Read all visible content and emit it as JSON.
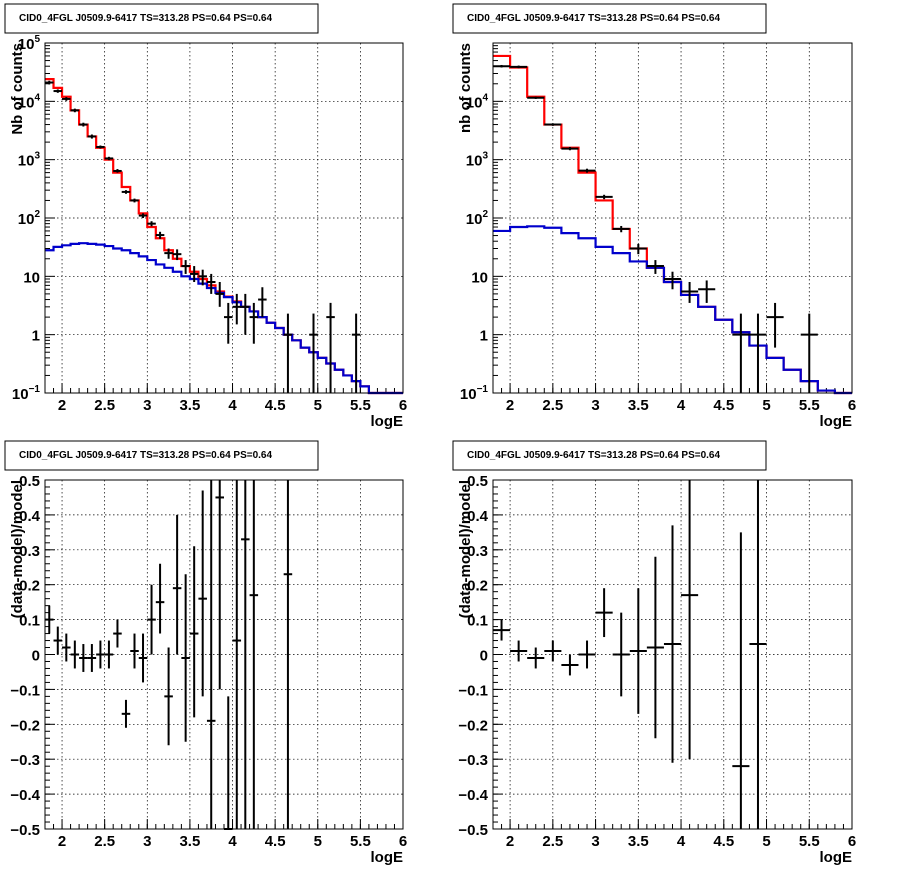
{
  "chart_data": [
    {
      "type": "histogram",
      "title": "CID0_4FGL J0509.9-6417 TS=313.28 PS=0.64 PS=0.64",
      "xlabel": "logE",
      "ylabel": "Nb of counts",
      "xlim": [
        1.8,
        6
      ],
      "ylim": [
        0.1,
        100000
      ],
      "yscale": "log",
      "grid": true,
      "x_ticks": [
        "2",
        "2.5",
        "3",
        "3.5",
        "4",
        "4.5",
        "5",
        "5.5",
        "6"
      ],
      "y_ticks": [
        {
          "v": 0.1,
          "base": "10",
          "exp": "−1"
        },
        {
          "v": 1,
          "base": "1",
          "exp": ""
        },
        {
          "v": 10,
          "base": "10",
          "exp": ""
        },
        {
          "v": 100,
          "base": "10",
          "exp": "2"
        },
        {
          "v": 1000,
          "base": "10",
          "exp": "3"
        },
        {
          "v": 10000,
          "base": "10",
          "exp": "4"
        },
        {
          "v": 100000,
          "base": "10",
          "exp": "5"
        }
      ],
      "bin_width": 0.1,
      "series": [
        {
          "color": "#ff0000",
          "x": [
            1.8,
            1.9,
            2.0,
            2.1,
            2.2,
            2.3,
            2.4,
            2.5,
            2.6,
            2.7,
            2.8,
            2.9,
            3.0,
            3.1,
            3.2,
            3.3,
            3.4,
            3.5,
            3.6,
            3.7,
            3.8,
            3.9,
            4.0,
            4.1,
            4.2,
            4.3,
            4.4,
            4.5,
            4.6,
            4.7,
            4.8,
            4.9,
            5.0,
            5.1,
            5.2,
            5.3,
            5.4,
            5.5,
            5.6,
            5.7,
            5.8,
            5.9
          ],
          "values": [
            24000,
            17000,
            12000,
            7000,
            4000,
            2500,
            1600,
            1000,
            600,
            340,
            200,
            120,
            70,
            45,
            28,
            20,
            15,
            12,
            9,
            7,
            5.5,
            4.5,
            3.7,
            3.0,
            2.5,
            2.0,
            1.6,
            1.3,
            1.0,
            0.8,
            0.6,
            0.5,
            0.4,
            0.32,
            0.25,
            0.2,
            0.16,
            0.13,
            0.1,
            0.1,
            0.1,
            0.1
          ]
        },
        {
          "color": "#0000cc",
          "x": [
            1.8,
            1.9,
            2.0,
            2.1,
            2.2,
            2.3,
            2.4,
            2.5,
            2.6,
            2.7,
            2.8,
            2.9,
            3.0,
            3.1,
            3.2,
            3.3,
            3.4,
            3.5,
            3.6,
            3.7,
            3.8,
            3.9,
            4.0,
            4.1,
            4.2,
            4.3,
            4.4,
            4.5,
            4.6,
            4.7,
            4.8,
            4.9,
            5.0,
            5.1,
            5.2,
            5.3,
            5.4,
            5.5,
            5.6,
            5.7,
            5.8,
            5.9
          ],
          "values": [
            28,
            32,
            34,
            36,
            37,
            36,
            35,
            33,
            30,
            28,
            25,
            22,
            19,
            16,
            14,
            12,
            10,
            9,
            7.5,
            6.3,
            5.2,
            4.4,
            3.6,
            3.0,
            2.5,
            2.0,
            1.6,
            1.3,
            1.0,
            0.8,
            0.6,
            0.5,
            0.4,
            0.32,
            0.25,
            0.2,
            0.16,
            0.13,
            0.1,
            0.1,
            0.1,
            0.1
          ]
        }
      ],
      "points": [
        {
          "x": 1.85,
          "y": 21000,
          "lo": 19500,
          "hi": 22500
        },
        {
          "x": 1.95,
          "y": 15000,
          "lo": 14000,
          "hi": 16000
        },
        {
          "x": 2.05,
          "y": 11000,
          "lo": 10200,
          "hi": 11800
        },
        {
          "x": 2.15,
          "y": 7000,
          "lo": 6500,
          "hi": 7500
        },
        {
          "x": 2.25,
          "y": 4000,
          "lo": 3700,
          "hi": 4300
        },
        {
          "x": 2.35,
          "y": 2500,
          "lo": 2300,
          "hi": 2700
        },
        {
          "x": 2.45,
          "y": 1650,
          "lo": 1550,
          "hi": 1750
        },
        {
          "x": 2.55,
          "y": 1050,
          "lo": 980,
          "hi": 1120
        },
        {
          "x": 2.65,
          "y": 640,
          "lo": 600,
          "hi": 690
        },
        {
          "x": 2.75,
          "y": 280,
          "lo": 260,
          "hi": 300
        },
        {
          "x": 2.85,
          "y": 200,
          "lo": 185,
          "hi": 215
        },
        {
          "x": 2.95,
          "y": 110,
          "lo": 100,
          "hi": 120
        },
        {
          "x": 3.05,
          "y": 80,
          "lo": 72,
          "hi": 88
        },
        {
          "x": 3.15,
          "y": 51,
          "lo": 44,
          "hi": 58
        },
        {
          "x": 3.25,
          "y": 25,
          "lo": 20,
          "hi": 30
        },
        {
          "x": 3.35,
          "y": 24,
          "lo": 19,
          "hi": 29
        },
        {
          "x": 3.45,
          "y": 15,
          "lo": 11,
          "hi": 19
        },
        {
          "x": 3.55,
          "y": 11,
          "lo": 8,
          "hi": 15
        },
        {
          "x": 3.65,
          "y": 10,
          "lo": 7,
          "hi": 13
        },
        {
          "x": 3.75,
          "y": 8,
          "lo": 5,
          "hi": 11
        },
        {
          "x": 3.85,
          "y": 5,
          "lo": 3,
          "hi": 8
        },
        {
          "x": 3.95,
          "y": 2,
          "lo": 0.7,
          "hi": 3.5
        },
        {
          "x": 4.05,
          "y": 3,
          "lo": 1.5,
          "hi": 5
        },
        {
          "x": 4.15,
          "y": 3,
          "lo": 1,
          "hi": 5
        },
        {
          "x": 4.25,
          "y": 2,
          "lo": 0.7,
          "hi": 3.5
        },
        {
          "x": 4.35,
          "y": 4,
          "lo": 2,
          "hi": 6.5
        },
        {
          "x": 4.65,
          "y": 1,
          "lo": 0.1,
          "hi": 2.3
        },
        {
          "x": 4.95,
          "y": 1,
          "lo": 0.1,
          "hi": 2.3
        },
        {
          "x": 5.15,
          "y": 2,
          "lo": 0.1,
          "hi": 3.5
        },
        {
          "x": 5.45,
          "y": 1,
          "lo": 0.1,
          "hi": 2.3
        }
      ]
    },
    {
      "type": "histogram",
      "title": "CID0_4FGL J0509.9-6417 TS=313.28 PS=0.64 PS=0.64",
      "xlabel": "logE",
      "ylabel": "nb of counts",
      "xlim": [
        1.8,
        6
      ],
      "ylim": [
        0.1,
        100000
      ],
      "yscale": "log",
      "grid": true,
      "x_ticks": [
        "2",
        "2.5",
        "3",
        "3.5",
        "4",
        "4.5",
        "5",
        "5.5",
        "6"
      ],
      "y_ticks": [
        {
          "v": 0.1,
          "base": "10",
          "exp": "−1"
        },
        {
          "v": 1,
          "base": "1",
          "exp": ""
        },
        {
          "v": 10,
          "base": "10",
          "exp": ""
        },
        {
          "v": 100,
          "base": "10",
          "exp": "2"
        },
        {
          "v": 1000,
          "base": "10",
          "exp": "3"
        },
        {
          "v": 10000,
          "base": "10",
          "exp": "4"
        }
      ],
      "bin_width": 0.2,
      "series": [
        {
          "color": "#ff0000",
          "x": [
            1.8,
            2.0,
            2.2,
            2.4,
            2.6,
            2.8,
            3.0,
            3.2,
            3.4,
            3.6,
            3.8,
            4.0,
            4.2,
            4.4,
            4.6,
            4.8,
            5.0,
            5.2,
            5.4,
            5.6,
            5.8
          ],
          "values": [
            60000,
            38000,
            12000,
            4000,
            1600,
            600,
            200,
            65,
            30,
            14,
            8,
            4.8,
            3.0,
            1.8,
            1.1,
            0.65,
            0.4,
            0.25,
            0.16,
            0.11,
            0.1
          ]
        },
        {
          "color": "#0000cc",
          "x": [
            1.8,
            2.0,
            2.2,
            2.4,
            2.6,
            2.8,
            3.0,
            3.2,
            3.4,
            3.6,
            3.8,
            4.0,
            4.2,
            4.4,
            4.6,
            4.8,
            5.0,
            5.2,
            5.4,
            5.6,
            5.8
          ],
          "values": [
            60,
            70,
            72,
            68,
            55,
            45,
            32,
            25,
            18,
            14,
            8,
            4.8,
            3.0,
            1.8,
            1.1,
            0.65,
            0.4,
            0.25,
            0.16,
            0.11,
            0.1
          ]
        }
      ],
      "points": [
        {
          "x": 1.9,
          "y": 40000,
          "lo": 38000,
          "hi": 42000
        },
        {
          "x": 2.1,
          "y": 39000,
          "lo": 37000,
          "hi": 41000
        },
        {
          "x": 2.3,
          "y": 11500,
          "lo": 11000,
          "hi": 12000
        },
        {
          "x": 2.5,
          "y": 4000,
          "lo": 3800,
          "hi": 4200
        },
        {
          "x": 2.7,
          "y": 1550,
          "lo": 1450,
          "hi": 1650
        },
        {
          "x": 2.9,
          "y": 650,
          "lo": 600,
          "hi": 700
        },
        {
          "x": 3.1,
          "y": 230,
          "lo": 210,
          "hi": 250
        },
        {
          "x": 3.3,
          "y": 65,
          "lo": 57,
          "hi": 73
        },
        {
          "x": 3.5,
          "y": 30,
          "lo": 24,
          "hi": 36
        },
        {
          "x": 3.7,
          "y": 15,
          "lo": 11,
          "hi": 19
        },
        {
          "x": 3.9,
          "y": 9,
          "lo": 6,
          "hi": 12
        },
        {
          "x": 4.1,
          "y": 5.5,
          "lo": 3.5,
          "hi": 8
        },
        {
          "x": 4.3,
          "y": 6,
          "lo": 3.5,
          "hi": 8.5
        },
        {
          "x": 4.7,
          "y": 1,
          "lo": 0.1,
          "hi": 2.3
        },
        {
          "x": 4.9,
          "y": 1,
          "lo": 0.1,
          "hi": 2.3
        },
        {
          "x": 5.1,
          "y": 2,
          "lo": 0.6,
          "hi": 3.5
        },
        {
          "x": 5.5,
          "y": 1,
          "lo": 0.1,
          "hi": 2.3
        }
      ]
    },
    {
      "type": "scatter",
      "title": "CID0_4FGL J0509.9-6417 TS=313.28 PS=0.64 PS=0.64",
      "xlabel": "logE",
      "ylabel": "(data-model)/model",
      "xlim": [
        1.8,
        6
      ],
      "ylim": [
        -0.5,
        0.5
      ],
      "grid": true,
      "x_ticks": [
        "2",
        "2.5",
        "3",
        "3.5",
        "4",
        "4.5",
        "5",
        "5.5",
        "6"
      ],
      "y_ticks": [
        "−0.5",
        "−0.4",
        "−0.3",
        "−0.2",
        "−0.1",
        "0",
        "0.1",
        "0.2",
        "0.3",
        "0.4",
        "0.5"
      ],
      "bin_width": 0.1,
      "points": [
        {
          "x": 1.85,
          "y": 0.1,
          "lo": 0.06,
          "hi": 0.14
        },
        {
          "x": 1.95,
          "y": 0.04,
          "lo": 0.0,
          "hi": 0.08
        },
        {
          "x": 2.05,
          "y": 0.02,
          "lo": -0.02,
          "hi": 0.06
        },
        {
          "x": 2.15,
          "y": 0.0,
          "lo": -0.04,
          "hi": 0.04
        },
        {
          "x": 2.25,
          "y": -0.01,
          "lo": -0.05,
          "hi": 0.03
        },
        {
          "x": 2.35,
          "y": -0.01,
          "lo": -0.05,
          "hi": 0.03
        },
        {
          "x": 2.45,
          "y": 0.0,
          "lo": -0.04,
          "hi": 0.04
        },
        {
          "x": 2.55,
          "y": 0.0,
          "lo": -0.04,
          "hi": 0.04
        },
        {
          "x": 2.65,
          "y": 0.06,
          "lo": 0.02,
          "hi": 0.1
        },
        {
          "x": 2.75,
          "y": -0.17,
          "lo": -0.21,
          "hi": -0.13
        },
        {
          "x": 2.85,
          "y": 0.01,
          "lo": -0.04,
          "hi": 0.06
        },
        {
          "x": 2.95,
          "y": -0.01,
          "lo": -0.08,
          "hi": 0.06
        },
        {
          "x": 3.05,
          "y": 0.1,
          "lo": 0.0,
          "hi": 0.2
        },
        {
          "x": 3.15,
          "y": 0.15,
          "lo": 0.06,
          "hi": 0.26
        },
        {
          "x": 3.25,
          "y": -0.12,
          "lo": -0.26,
          "hi": 0.02
        },
        {
          "x": 3.35,
          "y": 0.19,
          "lo": 0.0,
          "hi": 0.4
        },
        {
          "x": 3.45,
          "y": -0.01,
          "lo": -0.25,
          "hi": 0.23
        },
        {
          "x": 3.55,
          "y": 0.06,
          "lo": -0.18,
          "hi": 0.31
        },
        {
          "x": 3.65,
          "y": 0.16,
          "lo": -0.12,
          "hi": 0.47
        },
        {
          "x": 3.75,
          "y": -0.19,
          "lo": -0.5,
          "hi": 0.5
        },
        {
          "x": 3.85,
          "y": 0.45,
          "lo": -0.1,
          "hi": 0.5
        },
        {
          "x": 3.95,
          "y": -0.5,
          "lo": -0.5,
          "hi": -0.12
        },
        {
          "x": 4.05,
          "y": 0.04,
          "lo": -0.5,
          "hi": 0.5
        },
        {
          "x": 4.15,
          "y": 0.33,
          "lo": -0.5,
          "hi": 0.5
        },
        {
          "x": 4.25,
          "y": 0.17,
          "lo": -0.5,
          "hi": 0.5
        },
        {
          "x": 4.65,
          "y": 0.23,
          "lo": -0.5,
          "hi": 0.5
        }
      ]
    },
    {
      "type": "scatter",
      "title": "CID0_4FGL J0509.9-6417 TS=313.28 PS=0.64 PS=0.64",
      "xlabel": "logE",
      "ylabel": "(data-model)/model",
      "xlim": [
        1.8,
        6
      ],
      "ylim": [
        -0.5,
        0.5
      ],
      "grid": true,
      "x_ticks": [
        "2",
        "2.5",
        "3",
        "3.5",
        "4",
        "4.5",
        "5",
        "5.5",
        "6"
      ],
      "y_ticks": [
        "−0.5",
        "−0.4",
        "−0.3",
        "−0.2",
        "−0.1",
        "0",
        "0.1",
        "0.2",
        "0.3",
        "0.4",
        "0.5"
      ],
      "bin_width": 0.2,
      "points": [
        {
          "x": 1.9,
          "y": 0.07,
          "lo": 0.04,
          "hi": 0.1
        },
        {
          "x": 2.1,
          "y": 0.01,
          "lo": -0.02,
          "hi": 0.04
        },
        {
          "x": 2.3,
          "y": -0.01,
          "lo": -0.04,
          "hi": 0.02
        },
        {
          "x": 2.5,
          "y": 0.01,
          "lo": -0.02,
          "hi": 0.04
        },
        {
          "x": 2.7,
          "y": -0.03,
          "lo": -0.06,
          "hi": 0.0
        },
        {
          "x": 2.9,
          "y": 0.0,
          "lo": -0.04,
          "hi": 0.04
        },
        {
          "x": 3.1,
          "y": 0.12,
          "lo": 0.05,
          "hi": 0.19
        },
        {
          "x": 3.3,
          "y": 0.0,
          "lo": -0.12,
          "hi": 0.12
        },
        {
          "x": 3.5,
          "y": 0.01,
          "lo": -0.17,
          "hi": 0.19
        },
        {
          "x": 3.7,
          "y": 0.02,
          "lo": -0.24,
          "hi": 0.28
        },
        {
          "x": 3.9,
          "y": 0.03,
          "lo": -0.31,
          "hi": 0.37
        },
        {
          "x": 4.1,
          "y": 0.17,
          "lo": -0.3,
          "hi": 0.5
        },
        {
          "x": 4.7,
          "y": -0.32,
          "lo": -0.5,
          "hi": 0.35
        },
        {
          "x": 4.9,
          "y": 0.03,
          "lo": -0.5,
          "hi": 0.5
        }
      ]
    }
  ]
}
